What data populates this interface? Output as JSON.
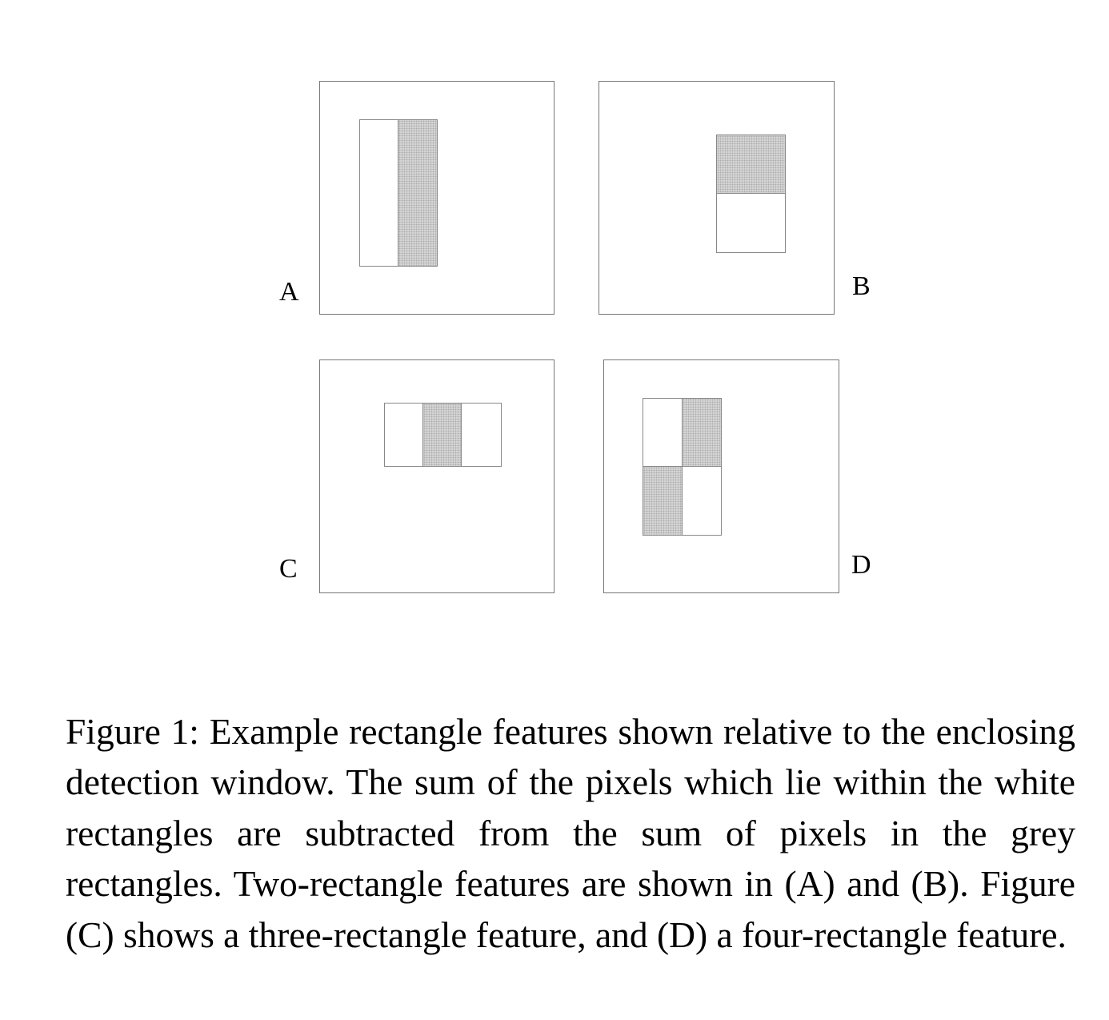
{
  "figure": {
    "panels": [
      {
        "id": "A",
        "label": "A",
        "cells": [
          "white",
          "grey"
        ]
      },
      {
        "id": "B",
        "label": "B",
        "cells": [
          "grey",
          "white"
        ]
      },
      {
        "id": "C",
        "label": "C",
        "cells": [
          "white",
          "grey",
          "white"
        ]
      },
      {
        "id": "D",
        "label": "D",
        "cells": [
          "white",
          "grey",
          "grey",
          "white"
        ]
      }
    ],
    "fill_colors": {
      "white": "#ffffff",
      "grey": "#d4d4d4",
      "border": "#777777"
    }
  },
  "caption": {
    "text": "Figure 1: Example rectangle features shown relative to the enclosing detection window. The sum of the pixels which lie within the white rectangles are subtracted from the sum of pixels in the grey rectangles. Two-rectangle features are shown in (A) and (B). Figure (C) shows a three-rectangle feature, and (D) a four-rectangle feature."
  }
}
